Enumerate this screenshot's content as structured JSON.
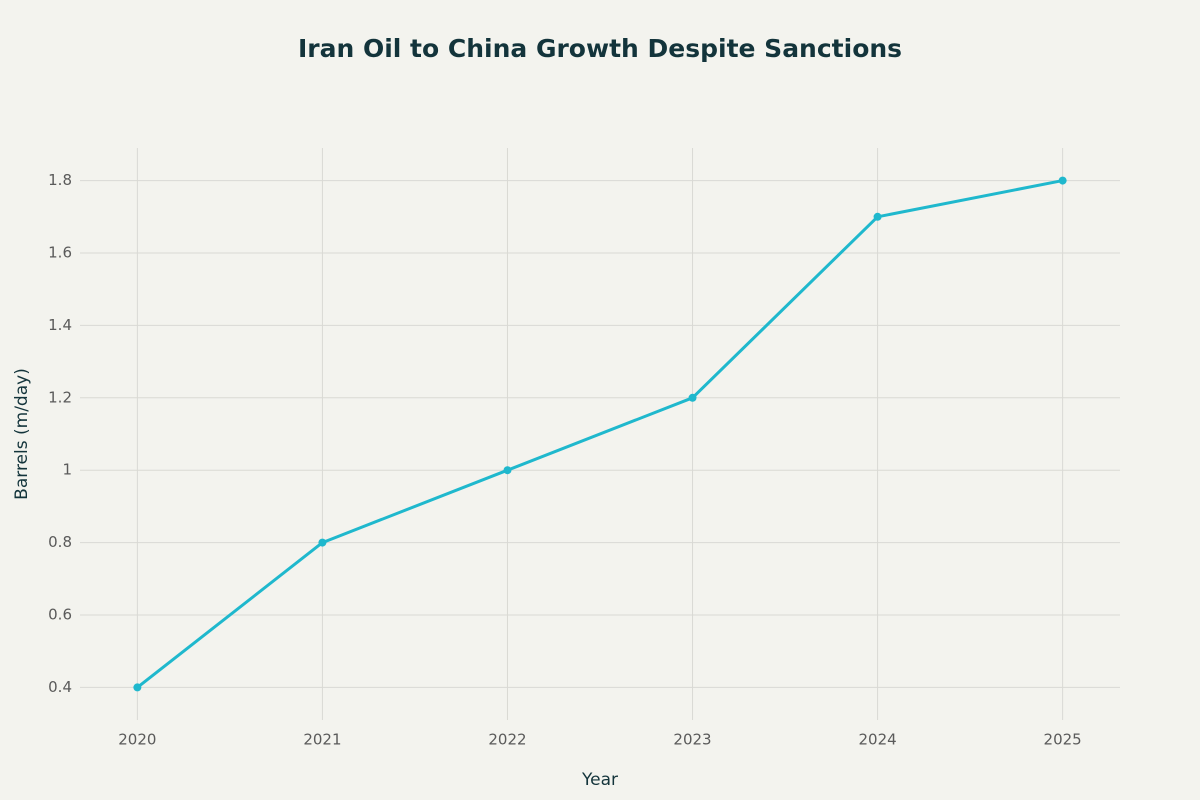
{
  "chart_data": {
    "type": "line",
    "title": "Iran Oil to China Growth Despite Sanctions",
    "x_label": "Year",
    "y_label": "Barrels (m/day)",
    "x": [
      2020,
      2021,
      2022,
      2023,
      2024,
      2025
    ],
    "values": [
      0.4,
      0.8,
      1.0,
      1.2,
      1.7,
      1.8
    ],
    "color": "#1FB8CD",
    "xlim": [
      2019.69,
      2025.31
    ],
    "xticks": [
      2020,
      2021,
      2022,
      2023,
      2024,
      2025
    ],
    "ylim": [
      0.31,
      1.89
    ],
    "yticks": [
      0.4,
      0.6,
      0.8,
      1,
      1.2,
      1.4,
      1.6,
      1.8
    ],
    "grid": true
  }
}
